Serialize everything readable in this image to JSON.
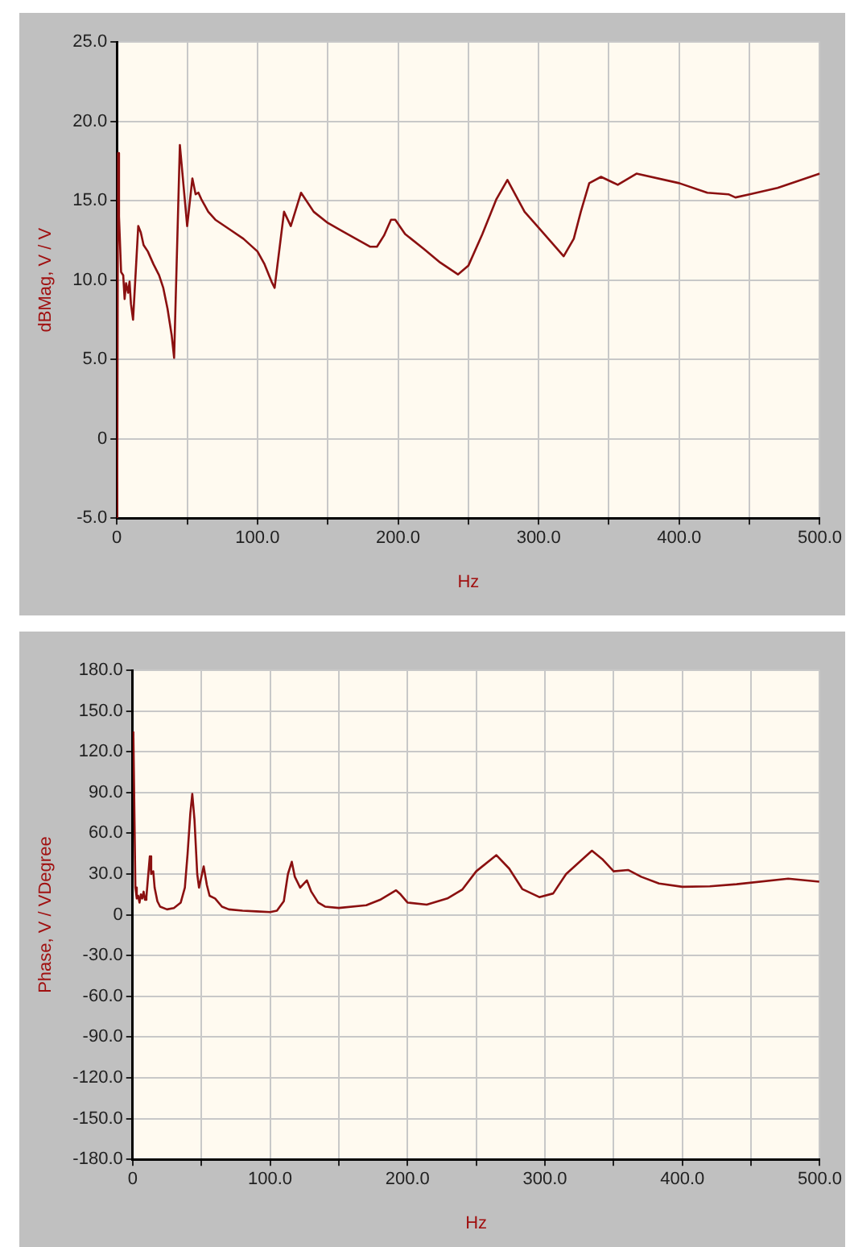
{
  "chart_data": [
    {
      "type": "line",
      "xlabel": "Hz",
      "ylabel": "dBMag, V / V",
      "grid": true,
      "legend": false,
      "marker": "none",
      "line_style": "solid",
      "xlim": [
        0,
        500
      ],
      "ylim": [
        -5,
        25
      ],
      "xticks": [
        0,
        {
          "value": 50,
          "label": null
        },
        {
          "value": 100,
          "label": "100.0"
        },
        {
          "value": 150,
          "label": null
        },
        {
          "value": 200,
          "label": "200.0"
        },
        {
          "value": 250,
          "label": null
        },
        {
          "value": 300,
          "label": "300.0"
        },
        {
          "value": 350,
          "label": null
        },
        {
          "value": 400,
          "label": "400.0"
        },
        {
          "value": 450,
          "label": null
        },
        {
          "value": 500,
          "label": "500.0"
        }
      ],
      "yticks": [
        {
          "value": -5,
          "label": "-5.0"
        },
        0,
        {
          "value": 5,
          "label": "5.0"
        },
        {
          "value": 10,
          "label": "10.0"
        },
        {
          "value": 15,
          "label": "15.0"
        },
        {
          "value": 20,
          "label": "20.0"
        },
        {
          "value": 25,
          "label": "25.0"
        }
      ],
      "series": [
        {
          "color": "#8b1010",
          "x": [
            0.2,
            0.8,
            1.5,
            3,
            4.5,
            5.5,
            6.5,
            8,
            9,
            10,
            11.5,
            13.7,
            15.2,
            17,
            19,
            22,
            26,
            30,
            33,
            36,
            39,
            40.7,
            44.8,
            50,
            53.7,
            56,
            58,
            60,
            65,
            70,
            80,
            90,
            100,
            105,
            110,
            112.2,
            118.9,
            123.7,
            131,
            140,
            150,
            160,
            170,
            180,
            185,
            190,
            195,
            198,
            205,
            218.5,
            230,
            242.6,
            250,
            260,
            270,
            277.8,
            290,
            300,
            317.8,
            325,
            330,
            336,
            344.4,
            356.3,
            369.6,
            400,
            420,
            435,
            440,
            450,
            470,
            500
          ],
          "values": [
            -5,
            18,
            14,
            10.5,
            10.3,
            8.8,
            9.8,
            9.2,
            9.9,
            8.5,
            7.5,
            11,
            13.4,
            13,
            12.2,
            11.8,
            11,
            10.3,
            9.5,
            8.2,
            6.5,
            5.1,
            18.5,
            13.4,
            16.4,
            15.4,
            15.5,
            15.1,
            14.3,
            13.8,
            13.2,
            12.6,
            11.8,
            11,
            9.9,
            9.5,
            14.3,
            13.4,
            15.5,
            14.3,
            13.6,
            13.1,
            12.6,
            12.1,
            12.1,
            12.8,
            13.8,
            13.8,
            12.9,
            11.95,
            11.1,
            10.35,
            10.9,
            12.9,
            15.1,
            16.3,
            14.3,
            13.3,
            11.5,
            12.6,
            14.3,
            16.1,
            16.5,
            16,
            16.7,
            16.1,
            15.5,
            15.4,
            15.2,
            15.4,
            15.8,
            16.7
          ]
        }
      ]
    },
    {
      "type": "line",
      "xlabel": "Hz",
      "ylabel": "Phase, V / VDegree",
      "grid": true,
      "legend": false,
      "marker": "none",
      "line_style": "solid",
      "xlim": [
        0,
        500
      ],
      "ylim": [
        -180,
        180
      ],
      "xticks": [
        0,
        {
          "value": 50,
          "label": null
        },
        {
          "value": 100,
          "label": "100.0"
        },
        {
          "value": 150,
          "label": null
        },
        {
          "value": 200,
          "label": "200.0"
        },
        {
          "value": 250,
          "label": null
        },
        {
          "value": 300,
          "label": "300.0"
        },
        {
          "value": 350,
          "label": null
        },
        {
          "value": 400,
          "label": "400.0"
        },
        {
          "value": 450,
          "label": null
        },
        {
          "value": 500,
          "label": "500.0"
        }
      ],
      "yticks": [
        {
          "value": -180,
          "label": "-180.0"
        },
        {
          "value": -150,
          "label": "-150.0"
        },
        {
          "value": -120,
          "label": "-120.0"
        },
        {
          "value": -90,
          "label": "-90.0"
        },
        {
          "value": -60,
          "label": "-60.0"
        },
        {
          "value": -30,
          "label": "-30.0"
        },
        0,
        {
          "value": 30,
          "label": "30.0"
        },
        {
          "value": 60,
          "label": "60.0"
        },
        {
          "value": 90,
          "label": "90.0"
        },
        {
          "value": 120,
          "label": "120.0"
        },
        {
          "value": 150,
          "label": "150.0"
        },
        {
          "value": 180,
          "label": "180.0"
        }
      ],
      "series": [
        {
          "color": "#8b1010",
          "x": [
            0.5,
            2,
            3,
            4,
            5,
            6,
            7,
            8,
            9,
            10,
            12.5,
            13.5,
            15,
            16,
            18,
            20,
            25,
            30,
            35,
            38,
            40,
            42,
            43.4,
            45,
            47,
            48.3,
            51.7,
            54,
            56,
            60,
            65,
            70,
            80,
            90,
            100,
            105,
            110,
            113,
            115.8,
            118,
            121.9,
            126.8,
            130,
            135,
            140,
            150,
            170,
            180,
            191.7,
            195,
            200,
            214,
            229,
            240,
            250,
            264.7,
            274,
            283.5,
            295.9,
            306,
            315.4,
            334.2,
            341.7,
            350,
            360.5,
            370,
            383,
            400,
            420,
            439.5,
            477,
            499.6
          ],
          "values": [
            135,
            20,
            12,
            14,
            9,
            15,
            12,
            17,
            11,
            13,
            43,
            30,
            32,
            20,
            10,
            6,
            4,
            5,
            9,
            20,
            45,
            75,
            88.9,
            70,
            30,
            20,
            35.6,
            22,
            14,
            12,
            6,
            4,
            3,
            2.5,
            2,
            3,
            10,
            30,
            39,
            28,
            20,
            25.3,
            17,
            9,
            6,
            5,
            7,
            11,
            18,
            15,
            9,
            7.5,
            12,
            18.7,
            32,
            43.9,
            34,
            19,
            13,
            15.7,
            30,
            47.2,
            41,
            32,
            33,
            28,
            23,
            20.6,
            21,
            22.5,
            26.6,
            24.4
          ]
        }
      ]
    }
  ]
}
